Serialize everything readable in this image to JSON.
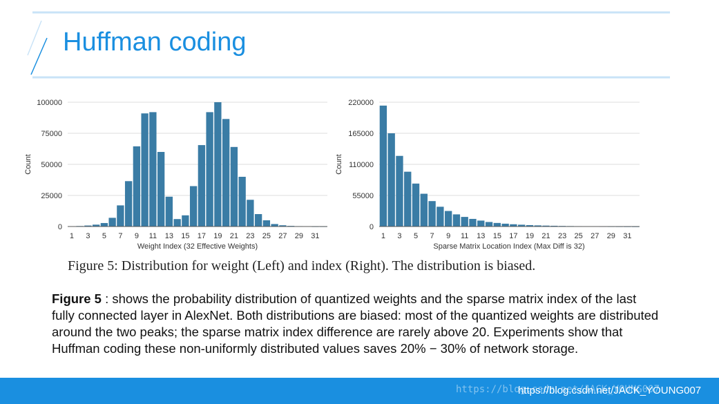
{
  "slide": {
    "title": "Huffman coding",
    "caption": "Figure 5: Distribution for weight (Left) and index (Right). The distribution is biased.",
    "description_bold": "Figure 5",
    "description_text": " : shows the probability distribution of quantized weights and the sparse matrix index of the last fully connected layer in AlexNet. Both distributions are biased: most of the quantized weights are distributed around the two peaks; the sparse matrix index difference are rarely above 20. Experiments show that Huffman coding these non-uniformly distributed values saves 20% − 30% of network storage.",
    "watermark_faint": "https://blog.csdn.net/JACK_YOUNG007",
    "watermark": "https://blog.csdn.net/JACK_YOUNG007"
  },
  "colors": {
    "accent": "#1a8fe0",
    "bar": "#3a7ca5",
    "grid": "#dddddd"
  },
  "chart_data": [
    {
      "type": "bar",
      "title": "",
      "xlabel": "Weight Index (32 Effective Weights)",
      "ylabel": "Count",
      "ylim": [
        0,
        100000
      ],
      "yticks": [
        0,
        25000,
        50000,
        75000,
        100000
      ],
      "ytick_labels": [
        "0",
        "25000",
        "50000",
        "75000",
        "100000"
      ],
      "xtick_labels": [
        "1",
        "3",
        "5",
        "7",
        "9",
        "11",
        "13",
        "15",
        "17",
        "19",
        "21",
        "23",
        "25",
        "27",
        "29",
        "31"
      ],
      "categories": [
        1,
        2,
        3,
        4,
        5,
        6,
        7,
        8,
        9,
        10,
        11,
        12,
        13,
        14,
        15,
        16,
        17,
        18,
        19,
        20,
        21,
        22,
        23,
        24,
        25,
        26,
        27,
        28,
        29,
        30,
        31,
        32
      ],
      "values": [
        200,
        400,
        800,
        1500,
        2800,
        7000,
        17000,
        36500,
        64500,
        91000,
        92000,
        60000,
        24000,
        6000,
        9000,
        32500,
        65500,
        92000,
        100000,
        86500,
        64000,
        40000,
        21500,
        10000,
        5000,
        2000,
        1000,
        500,
        300,
        200,
        100,
        100
      ],
      "grid": true
    },
    {
      "type": "bar",
      "title": "",
      "xlabel": "Sparse Matrix Location Index (Max Diff is 32)",
      "ylabel": "Count",
      "ylim": [
        0,
        220000
      ],
      "yticks": [
        0,
        55000,
        110000,
        165000,
        220000
      ],
      "ytick_labels": [
        "0",
        "55000",
        "110000",
        "165000",
        "220000"
      ],
      "xtick_labels": [
        "1",
        "3",
        "5",
        "7",
        "9",
        "11",
        "13",
        "15",
        "17",
        "19",
        "21",
        "23",
        "25",
        "27",
        "29",
        "31"
      ],
      "categories": [
        1,
        2,
        3,
        4,
        5,
        6,
        7,
        8,
        9,
        10,
        11,
        12,
        13,
        14,
        15,
        16,
        17,
        18,
        19,
        20,
        21,
        22,
        23,
        24,
        25,
        26,
        27,
        28,
        29,
        30,
        31,
        32
      ],
      "values": [
        214000,
        165000,
        125000,
        97000,
        76000,
        58000,
        45000,
        35000,
        27500,
        21500,
        17000,
        13500,
        10500,
        8000,
        6300,
        5000,
        4000,
        3200,
        2500,
        2000,
        1600,
        1300,
        1000,
        800,
        650,
        500,
        400,
        320,
        250,
        200,
        150,
        100
      ],
      "grid": true
    }
  ]
}
